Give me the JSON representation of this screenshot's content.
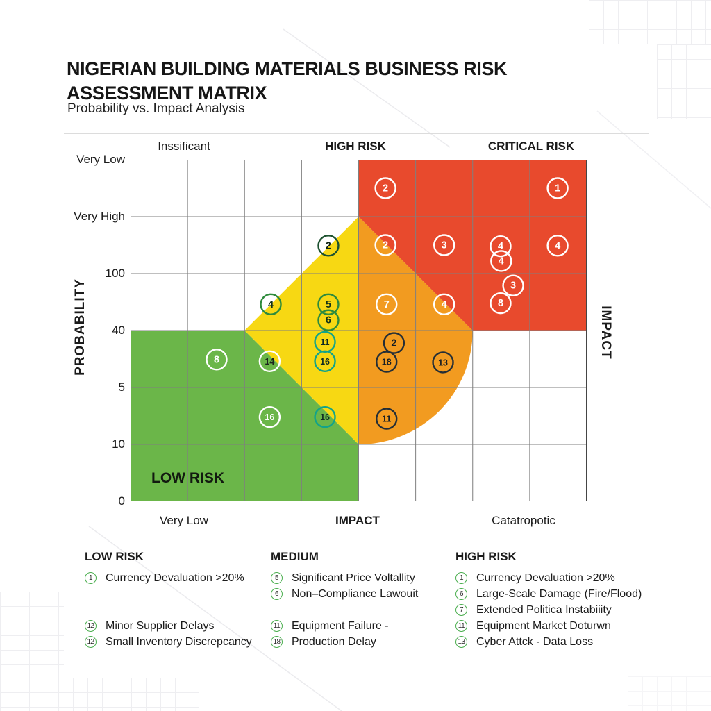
{
  "title": "NIGERIAN BUILDING MATERIALS BUSINESS RISK ASSESSMENT MATRIX",
  "subtitle": "Probability vs. Impact Analysis",
  "chart_data": {
    "type": "scatter",
    "title": "NIGERIAN BUILDING MATERIALS BUSINESS RISK ASSESSMENT MATRIX",
    "subtitle": "Probability vs. Impact Analysis",
    "xlabel": "IMPACT",
    "ylabel": "PROBABILITY",
    "grid": {
      "columns": 8,
      "rows": 6
    },
    "top_labels": [
      "Inssificant",
      "HIGH RISK",
      "CRITICAL RISK"
    ],
    "bottom_labels": [
      "Very Low",
      "IMPACT",
      "Catatropotic"
    ],
    "y_tick_labels": [
      "Very Low",
      "Very High",
      "100",
      "40",
      "5",
      "10",
      "0"
    ],
    "zone_label_low": "LOW RISK",
    "zone_colors": {
      "low": "#6bb649",
      "medium": "#f7d813",
      "elevated": "#f29b20",
      "critical": "#e84a2d"
    },
    "grid_line_color": "#7f7f7f",
    "border_color": "#454545",
    "marker_styles": {
      "white": {
        "ring": "#ffffff",
        "text": "#ffffff"
      },
      "white-dark": {
        "ring": "#ffffff",
        "text": "#1a231c"
      },
      "dark": {
        "ring": "#242e36",
        "text": "#151d24"
      },
      "green": {
        "ring": "#2e8b3c",
        "text": "#123318"
      },
      "teal": {
        "ring": "#12a38a",
        "text": "#0e2b24"
      },
      "darkgreen": {
        "ring": "#1d5230",
        "text": "#0f2415"
      }
    },
    "points": [
      {
        "label": "2",
        "col": 4.47,
        "row": 0.5,
        "style": "white"
      },
      {
        "label": "1",
        "col": 7.49,
        "row": 0.5,
        "style": "white"
      },
      {
        "label": "2",
        "col": 3.47,
        "row": 1.51,
        "style": "darkgreen"
      },
      {
        "label": "2",
        "col": 4.47,
        "row": 1.5,
        "style": "white"
      },
      {
        "label": "3",
        "col": 5.5,
        "row": 1.5,
        "style": "white"
      },
      {
        "label": "4",
        "col": 6.49,
        "row": 1.52,
        "style": "white"
      },
      {
        "label": "4",
        "col": 6.5,
        "row": 1.78,
        "style": "white"
      },
      {
        "label": "4",
        "col": 7.49,
        "row": 1.51,
        "style": "white"
      },
      {
        "label": "3",
        "col": 6.71,
        "row": 2.21,
        "style": "white"
      },
      {
        "label": "8",
        "col": 6.49,
        "row": 2.52,
        "style": "white"
      },
      {
        "label": "4",
        "col": 2.46,
        "row": 2.54,
        "style": "green"
      },
      {
        "label": "5",
        "col": 3.47,
        "row": 2.54,
        "style": "green"
      },
      {
        "label": "6",
        "col": 3.47,
        "row": 2.82,
        "style": "green"
      },
      {
        "label": "7",
        "col": 4.49,
        "row": 2.54,
        "style": "white"
      },
      {
        "label": "4",
        "col": 5.5,
        "row": 2.54,
        "style": "white"
      },
      {
        "label": "8",
        "col": 1.51,
        "row": 3.51,
        "style": "white"
      },
      {
        "label": "14",
        "col": 2.44,
        "row": 3.54,
        "style": "white-dark"
      },
      {
        "label": "11",
        "col": 3.41,
        "row": 3.2,
        "style": "teal"
      },
      {
        "label": "16",
        "col": 3.41,
        "row": 3.54,
        "style": "teal"
      },
      {
        "label": "2",
        "col": 4.62,
        "row": 3.22,
        "style": "dark"
      },
      {
        "label": "18",
        "col": 4.49,
        "row": 3.55,
        "style": "dark"
      },
      {
        "label": "13",
        "col": 5.48,
        "row": 3.56,
        "style": "dark"
      },
      {
        "label": "16",
        "col": 2.44,
        "row": 4.52,
        "style": "white"
      },
      {
        "label": "16",
        "col": 3.41,
        "row": 4.52,
        "style": "teal"
      },
      {
        "label": "11",
        "col": 4.49,
        "row": 4.55,
        "style": "dark"
      }
    ]
  },
  "legend": {
    "columns": [
      {
        "header": "LOW RISK",
        "items": [
          {
            "num": "1",
            "text": "Currency Devaluation >20%",
            "gap": 0
          },
          {
            "num": "12",
            "text": "Minor Supplier Delays",
            "gap": 2
          },
          {
            "num": "12",
            "text": "Small Inventory Discrepcancy",
            "gap": 0
          }
        ]
      },
      {
        "header": "MEDIUM",
        "items": [
          {
            "num": "5",
            "text": "Significant Price Voltallity",
            "gap": 0
          },
          {
            "num": "6",
            "text": "Non–Compliance Lawouit",
            "gap": 0
          },
          {
            "num": "11",
            "text": "Equipment Failure -",
            "gap": 1
          },
          {
            "num": "18",
            "text": "Production Delay",
            "gap": 0
          }
        ]
      },
      {
        "header": "HIGH RISK",
        "items": [
          {
            "num": "1",
            "text": "Currency Devaluation >20%",
            "gap": 0
          },
          {
            "num": "6",
            "text": "Large-Scale Damage (Fire/Flood)",
            "gap": 0
          },
          {
            "num": "7",
            "text": "Extended Politica Instabiiity",
            "gap": 0
          },
          {
            "num": "11",
            "text": "Equipment Market Doturwn",
            "gap": 0
          },
          {
            "num": "13",
            "text": "Cyber Attck - Data Loss",
            "gap": 0
          }
        ]
      }
    ]
  }
}
